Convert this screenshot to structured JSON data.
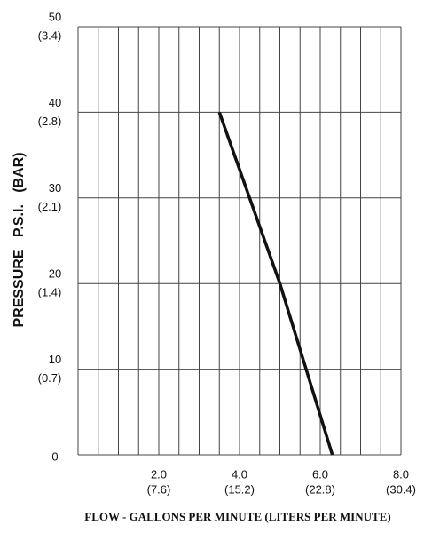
{
  "chart_data": {
    "type": "line",
    "xlabel": "FLOW - GALLONS PER MINUTE  (LITERS PER MINUTE)",
    "ylabel": "PRESSURE   P.S.I.   (BAR)",
    "xlim": [
      0,
      8
    ],
    "ylim": [
      0,
      50
    ],
    "xticks": [
      {
        "value": 2,
        "label": "2.0",
        "metric": "(7.6)"
      },
      {
        "value": 4,
        "label": "4.0",
        "metric": "(15.2)"
      },
      {
        "value": 6,
        "label": "6.0",
        "metric": "(22.8)"
      },
      {
        "value": 8,
        "label": "8.0",
        "metric": "(30.4)"
      }
    ],
    "yticks": [
      0,
      {
        "value": 10,
        "label": "10",
        "metric": "(0.7)"
      },
      {
        "value": 20,
        "label": "20",
        "metric": "(1.4)"
      },
      {
        "value": 30,
        "label": "30",
        "metric": "(2.1)"
      },
      {
        "value": 40,
        "label": "40",
        "metric": "(2.8)"
      },
      {
        "value": 50,
        "label": "50",
        "metric": "(3.4)"
      }
    ],
    "xgrid": [
      0,
      0.5,
      1,
      1.5,
      2,
      2.5,
      3,
      3.5,
      4,
      4.5,
      5,
      5.5,
      6,
      6.5,
      7,
      7.5,
      8
    ],
    "grid": true,
    "series": [
      {
        "color": "#111111",
        "x": [
          3.5,
          5.0,
          6.3
        ],
        "values": [
          40,
          20,
          0
        ]
      }
    ]
  }
}
